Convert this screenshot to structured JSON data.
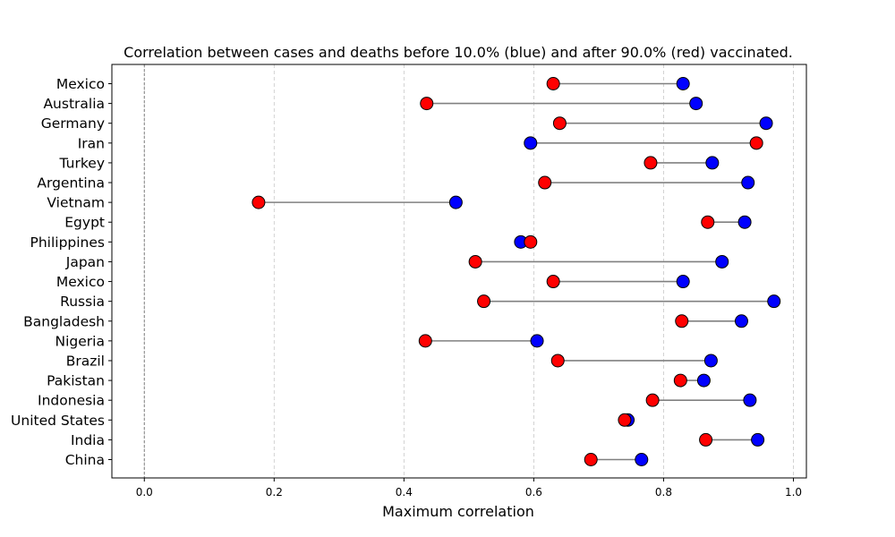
{
  "chart_data": {
    "type": "dumbbell",
    "title": "Correlation between cases and deaths before 10.0% (blue) and after 90.0% (red) vaccinated.",
    "xlabel": "Maximum correlation",
    "ylabel": "",
    "xlim": [
      -0.05,
      1.02
    ],
    "xticks": [
      0.0,
      0.2,
      0.4,
      0.6,
      0.8,
      1.0
    ],
    "xtick_labels": [
      "0.0",
      "0.2",
      "0.4",
      "0.6",
      "0.8",
      "1.0"
    ],
    "grid": "x-dashed",
    "vertical_reference_line": 0.0,
    "categories": [
      "Mexico",
      "Australia",
      "Germany",
      "Iran",
      "Turkey",
      "Argentina",
      "Vietnam",
      "Egypt",
      "Philippines",
      "Japan",
      "Mexico",
      "Russia",
      "Bangladesh",
      "Nigeria",
      "Brazil",
      "Pakistan",
      "Indonesia",
      "United States",
      "India",
      "China"
    ],
    "series": [
      {
        "color": "#0000ff",
        "values": [
          0.83,
          0.85,
          0.958,
          0.595,
          0.875,
          0.93,
          0.48,
          0.925,
          0.58,
          0.89,
          0.83,
          0.97,
          0.92,
          0.605,
          0.873,
          0.862,
          0.933,
          0.745,
          0.945,
          0.766
        ]
      },
      {
        "color": "#ff0000",
        "values": [
          0.63,
          0.435,
          0.64,
          0.943,
          0.78,
          0.617,
          0.176,
          0.868,
          0.595,
          0.51,
          0.63,
          0.523,
          0.828,
          0.433,
          0.637,
          0.826,
          0.783,
          0.74,
          0.865,
          0.688
        ]
      }
    ],
    "connector_color": "#808080"
  }
}
